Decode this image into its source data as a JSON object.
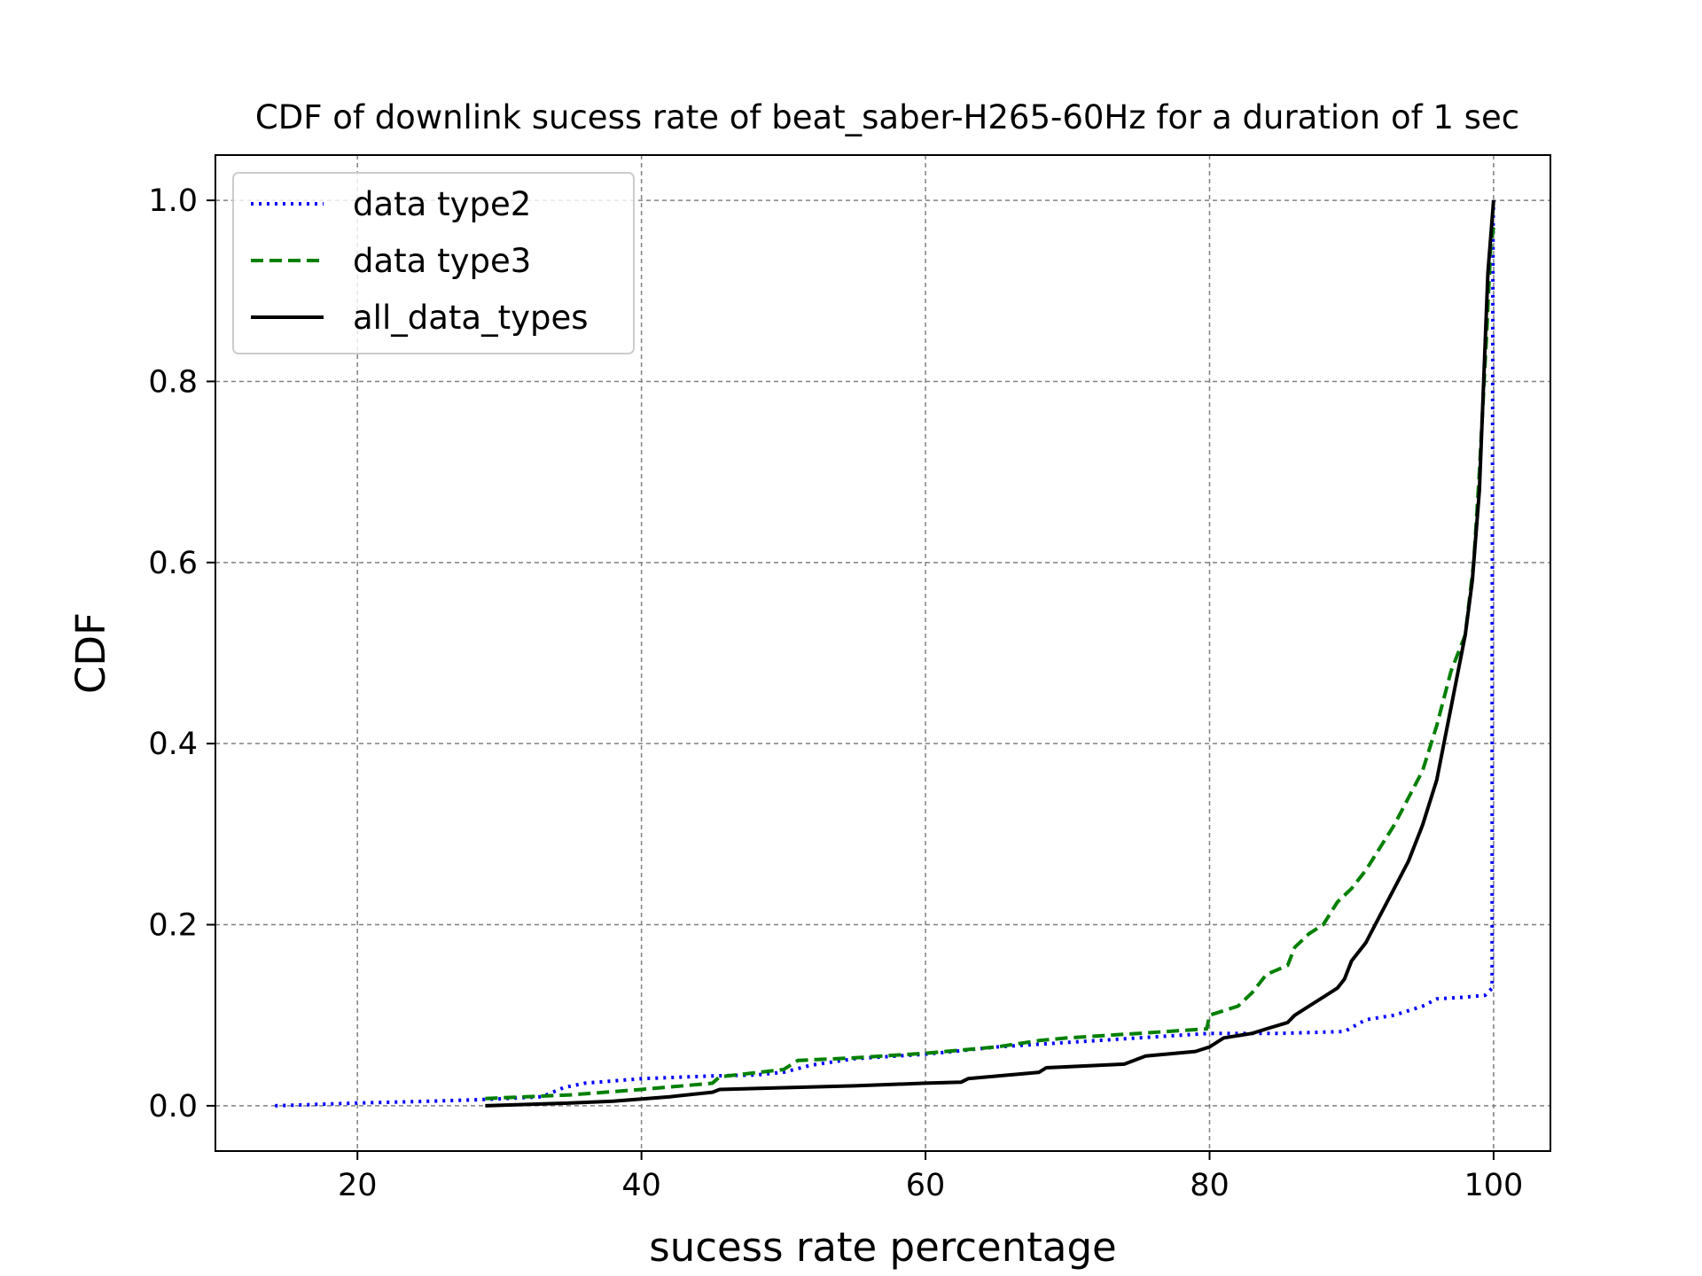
{
  "chart_data": {
    "type": "line",
    "title": "CDF of downlink sucess rate of beat_saber-H265-60Hz for a duration of 1 sec",
    "xlabel": "sucess rate percentage",
    "ylabel": "CDF",
    "xlim": [
      10,
      104
    ],
    "ylim": [
      -0.05,
      1.05
    ],
    "xticks": [
      20,
      40,
      60,
      80,
      100
    ],
    "xtick_labels": [
      "20",
      "40",
      "60",
      "80",
      "100"
    ],
    "yticks": [
      0.0,
      0.2,
      0.4,
      0.6,
      0.8,
      1.0
    ],
    "ytick_labels": [
      "0.0",
      "0.2",
      "0.4",
      "0.6",
      "0.8",
      "1.0"
    ],
    "grid": true,
    "legend_position": "top-left",
    "series": [
      {
        "name": "data type2",
        "color": "#0000ff",
        "style": "dotted",
        "points": [
          [
            14.2,
            0.0
          ],
          [
            20,
            0.003
          ],
          [
            25,
            0.005
          ],
          [
            29,
            0.007
          ],
          [
            33,
            0.01
          ],
          [
            34.5,
            0.02
          ],
          [
            36,
            0.025
          ],
          [
            40,
            0.03
          ],
          [
            45,
            0.033
          ],
          [
            48,
            0.034
          ],
          [
            50,
            0.037
          ],
          [
            52,
            0.045
          ],
          [
            55,
            0.052
          ],
          [
            60,
            0.057
          ],
          [
            62,
            0.06
          ],
          [
            65,
            0.065
          ],
          [
            70,
            0.07
          ],
          [
            75,
            0.075
          ],
          [
            80,
            0.08
          ],
          [
            85,
            0.08
          ],
          [
            89.5,
            0.082
          ],
          [
            91,
            0.095
          ],
          [
            93,
            0.1
          ],
          [
            95,
            0.11
          ],
          [
            96,
            0.118
          ],
          [
            98,
            0.12
          ],
          [
            99.4,
            0.122
          ],
          [
            99.9,
            0.13
          ],
          [
            99.9,
            0.5
          ],
          [
            99.95,
            0.9
          ],
          [
            99.97,
            0.98
          ],
          [
            100,
            1.0
          ]
        ]
      },
      {
        "name": "data type3",
        "color": "#008000",
        "style": "dashed",
        "points": [
          [
            29,
            0.008
          ],
          [
            35,
            0.012
          ],
          [
            40,
            0.018
          ],
          [
            45,
            0.025
          ],
          [
            45.5,
            0.032
          ],
          [
            50,
            0.04
          ],
          [
            51,
            0.05
          ],
          [
            55,
            0.053
          ],
          [
            60,
            0.058
          ],
          [
            65,
            0.065
          ],
          [
            68,
            0.072
          ],
          [
            70,
            0.075
          ],
          [
            75,
            0.08
          ],
          [
            79.8,
            0.085
          ],
          [
            80,
            0.1
          ],
          [
            82,
            0.11
          ],
          [
            83,
            0.125
          ],
          [
            84,
            0.145
          ],
          [
            85.5,
            0.155
          ],
          [
            86,
            0.175
          ],
          [
            87,
            0.19
          ],
          [
            88,
            0.2
          ],
          [
            89,
            0.225
          ],
          [
            90,
            0.24
          ],
          [
            91,
            0.26
          ],
          [
            92,
            0.285
          ],
          [
            93,
            0.31
          ],
          [
            94,
            0.34
          ],
          [
            95,
            0.37
          ],
          [
            96,
            0.42
          ],
          [
            97,
            0.48
          ],
          [
            98,
            0.52
          ],
          [
            98.6,
            0.6
          ],
          [
            99,
            0.7
          ],
          [
            99.5,
            0.85
          ],
          [
            99.8,
            0.95
          ],
          [
            100,
            0.97
          ]
        ]
      },
      {
        "name": "all_data_types",
        "color": "#000000",
        "style": "solid",
        "points": [
          [
            29,
            0.0
          ],
          [
            35,
            0.003
          ],
          [
            38,
            0.005
          ],
          [
            42,
            0.01
          ],
          [
            45,
            0.015
          ],
          [
            45.5,
            0.018
          ],
          [
            50,
            0.02
          ],
          [
            55,
            0.022
          ],
          [
            60,
            0.025
          ],
          [
            62.5,
            0.026
          ],
          [
            63,
            0.03
          ],
          [
            68,
            0.037
          ],
          [
            68.5,
            0.042
          ],
          [
            74,
            0.046
          ],
          [
            75.5,
            0.055
          ],
          [
            79,
            0.06
          ],
          [
            80,
            0.065
          ],
          [
            81,
            0.075
          ],
          [
            83,
            0.08
          ],
          [
            84,
            0.085
          ],
          [
            85.5,
            0.092
          ],
          [
            86,
            0.1
          ],
          [
            87,
            0.11
          ],
          [
            88,
            0.12
          ],
          [
            89,
            0.13
          ],
          [
            89.5,
            0.14
          ],
          [
            90,
            0.16
          ],
          [
            91,
            0.18
          ],
          [
            92,
            0.21
          ],
          [
            93,
            0.24
          ],
          [
            94,
            0.27
          ],
          [
            95,
            0.31
          ],
          [
            96,
            0.36
          ],
          [
            96.5,
            0.4
          ],
          [
            97,
            0.44
          ],
          [
            97.5,
            0.48
          ],
          [
            98,
            0.52
          ],
          [
            98.5,
            0.58
          ],
          [
            99,
            0.68
          ],
          [
            99.3,
            0.8
          ],
          [
            99.6,
            0.92
          ],
          [
            99.8,
            0.96
          ],
          [
            100,
            1.0
          ]
        ]
      }
    ]
  }
}
